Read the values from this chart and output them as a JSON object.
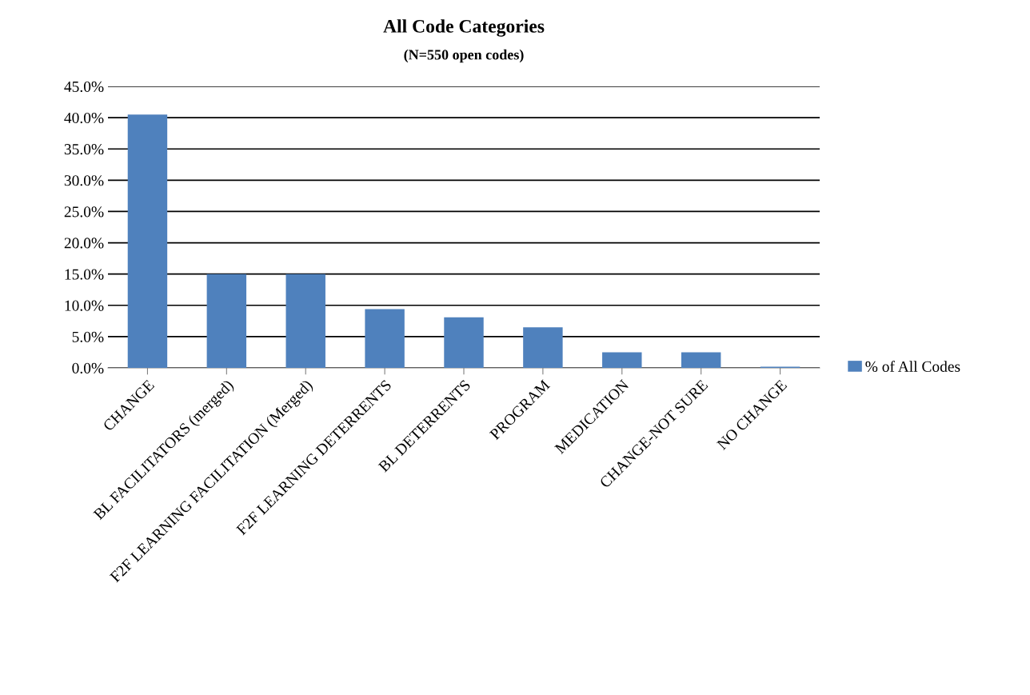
{
  "chart_data": {
    "type": "bar",
    "title": "All Code Categories",
    "subtitle": "(N=550 open codes)",
    "categories": [
      "CHANGE",
      "BL FACILITATORS (merged)",
      "F2F LEARNING FACILITATION (Merged)",
      "F2F LEARNING DETERRENTS",
      "BL DETERRENTS",
      "PROGRAM",
      "MEDICATION",
      "CHANGE-NOT SURE",
      "NO CHANGE"
    ],
    "series": [
      {
        "name": "% of All Codes",
        "color": "#4f81bd",
        "values": [
          40.5,
          15.0,
          15.0,
          9.4,
          8.1,
          6.5,
          2.5,
          2.5,
          0.2
        ]
      }
    ],
    "ylim": [
      0,
      45
    ],
    "yticks": [
      {
        "value": 0,
        "label": "0.0%"
      },
      {
        "value": 5,
        "label": "5.0%"
      },
      {
        "value": 10,
        "label": "10.0%"
      },
      {
        "value": 15,
        "label": "15.0%"
      },
      {
        "value": 20,
        "label": "20.0%"
      },
      {
        "value": 25,
        "label": "25.0%"
      },
      {
        "value": 30,
        "label": "30.0%"
      },
      {
        "value": 35,
        "label": "35.0%"
      },
      {
        "value": 40,
        "label": "40.0%"
      },
      {
        "value": 45,
        "label": "45.0%"
      }
    ],
    "grid": "y",
    "legend": "right"
  }
}
